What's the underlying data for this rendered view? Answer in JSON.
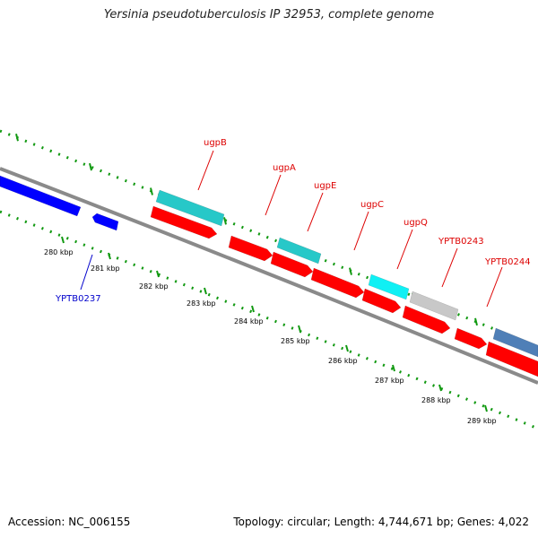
{
  "title": "Yersinia pseudotuberculosis IP 32953, complete genome",
  "footer": {
    "accession": "Accession: NC_006155",
    "stats": "Topology: circular; Length: 4,744,671 bp; Genes: 4,022"
  },
  "colors": {
    "backbone": "#8a8a8a",
    "tick": "#119911",
    "tick_label": "#000000",
    "gene_red": "#ff0000",
    "gene_cyan": "#27c8c8",
    "gene_bright_cyan": "#10f0f4",
    "gene_gray": "#c8c8c8",
    "gene_blue": "#0000ff",
    "gene_steelblue": "#4f7fb7",
    "label_red": "#dd0000",
    "label_blue": "#0000cc"
  },
  "ruler": {
    "labels": [
      "280 kbp",
      "281 kbp",
      "282 kbp",
      "283 kbp",
      "284 kbp",
      "285 kbp",
      "286 kbp",
      "287 kbp",
      "288 kbp",
      "289 kbp"
    ]
  },
  "genes": [
    {
      "name": "YPTB0237",
      "label": "YPTB0237",
      "color": "blue",
      "track": "lower"
    },
    {
      "name": "ugpB",
      "label": "ugpB",
      "color": "cyan",
      "track": "upper"
    },
    {
      "name": "ugpA",
      "label": "ugpA",
      "color": "cyan",
      "track": "upper"
    },
    {
      "name": "ugpE",
      "label": "ugpE",
      "color": "cyan",
      "track": "upper"
    },
    {
      "name": "ugpC",
      "label": "ugpC",
      "color": "bright_cyan",
      "track": "upper"
    },
    {
      "name": "ugpQ",
      "label": "ugpQ",
      "color": "gray",
      "track": "upper"
    },
    {
      "name": "YPTB0243",
      "label": "YPTB0243",
      "color": "steelblue",
      "track": "upper"
    },
    {
      "name": "YPTB0244",
      "label": "YPTB0244",
      "color": "red",
      "track": "middle"
    }
  ]
}
